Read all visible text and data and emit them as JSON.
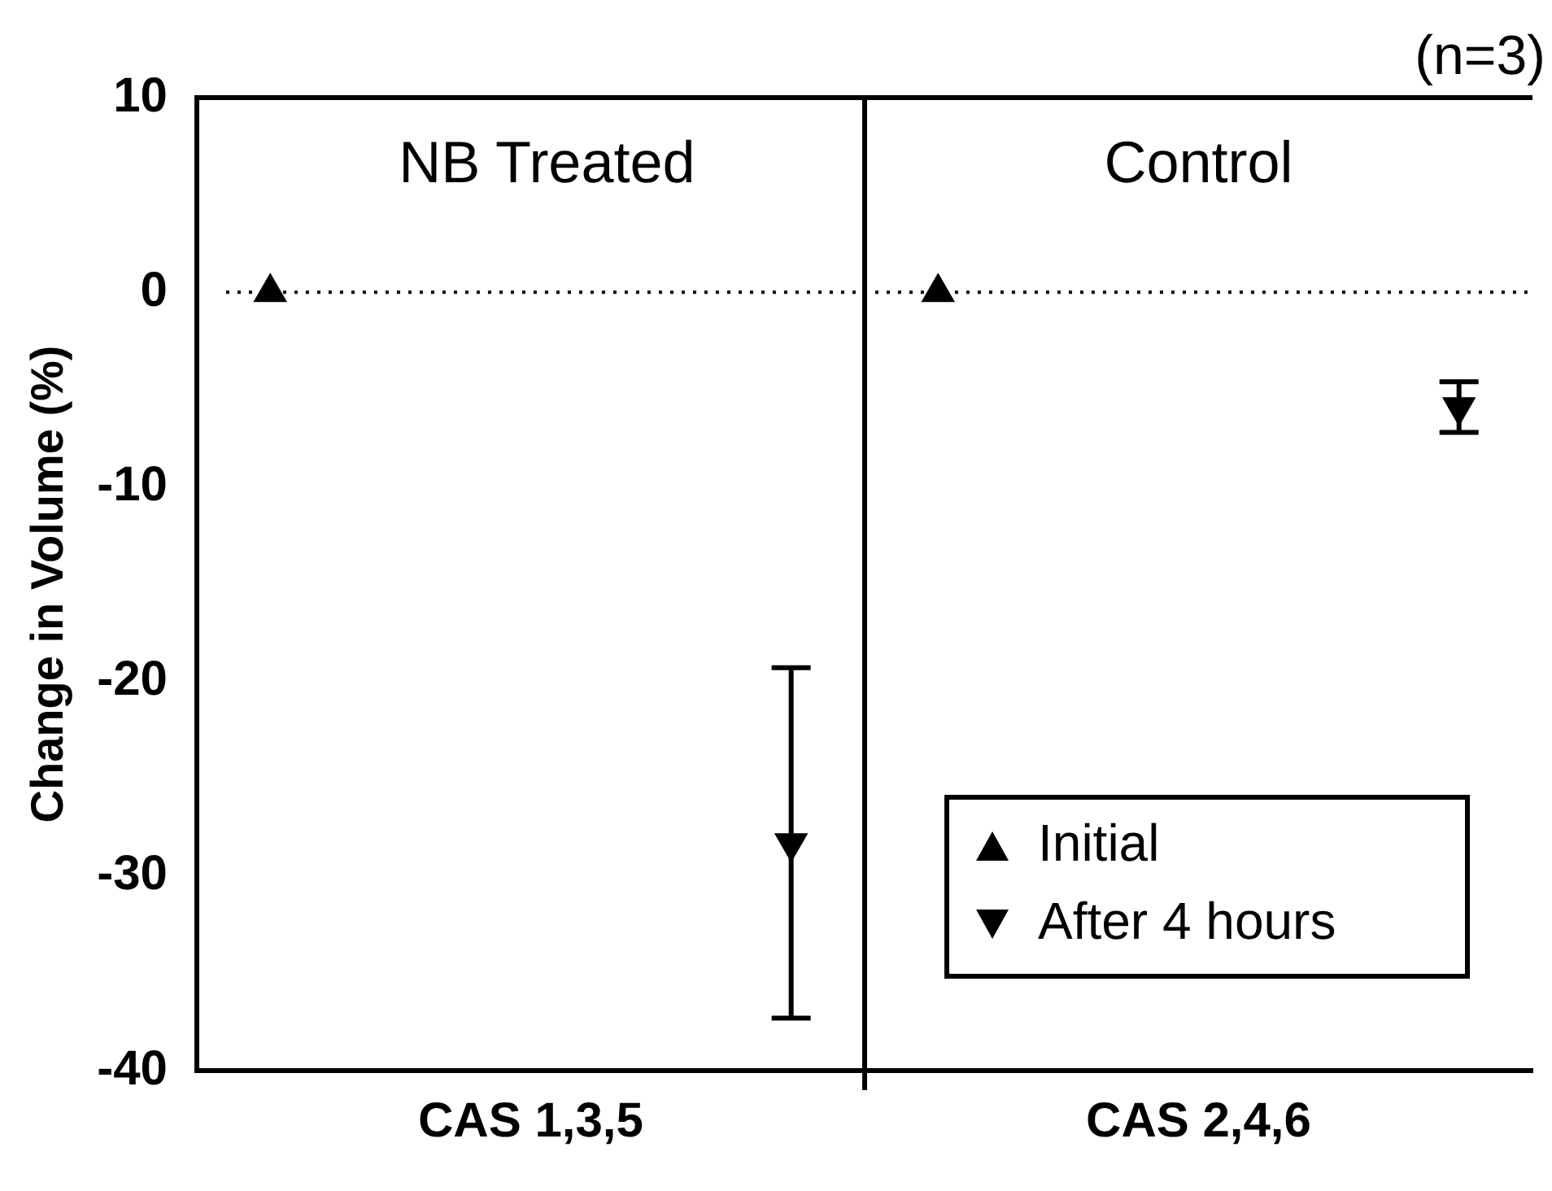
{
  "chart_data": {
    "type": "scatter",
    "ylabel": "Change in Volume (%)",
    "categories": [
      "CAS 1,3,5",
      "CAS 2,4,6"
    ],
    "series": [
      {
        "name": "Initial",
        "color": "#000000",
        "marker": "triangle",
        "values": [
          0,
          0
        ]
      },
      {
        "name": "After 4 hours",
        "color": "#000000",
        "marker": "triangle-down",
        "values": [
          -28.3,
          -5.9
        ],
        "errors": [
          9,
          1.3
        ]
      }
    ],
    "ylim": [
      -40,
      10
    ],
    "yticks": [
      -40,
      -30,
      -20,
      -10,
      0,
      10
    ],
    "legend": "bottom right",
    "ref_lines": [
      {
        "axis": "y",
        "value": 0,
        "line_style": "dotted",
        "color": "#000000"
      }
    ],
    "annotations": [
      "(n=3)",
      "NB Treated",
      "Control"
    ]
  }
}
